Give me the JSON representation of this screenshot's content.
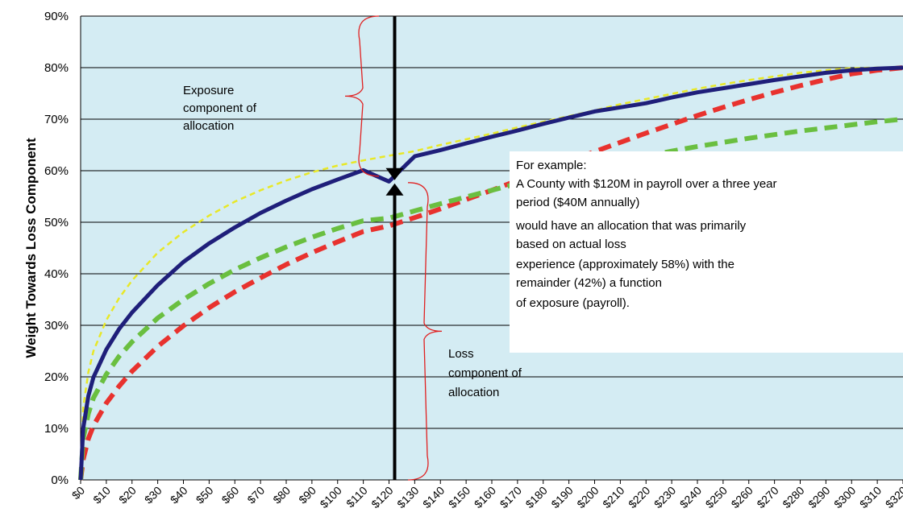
{
  "chart_data": {
    "type": "line",
    "title": "",
    "xlabel": "",
    "ylabel": "Weight Towards Loss Component",
    "xlim": [
      0,
      320
    ],
    "ylim": [
      0,
      90
    ],
    "x_ticks": [
      "$0",
      "$10",
      "$20",
      "$30",
      "$40",
      "$50",
      "$60",
      "$70",
      "$80",
      "$90",
      "$100",
      "$110",
      "$120",
      "$130",
      "$140",
      "$150",
      "$160",
      "$170",
      "$180",
      "$190",
      "$200",
      "$210",
      "$220",
      "$230",
      "$240",
      "$250",
      "$260",
      "$270",
      "$280",
      "$290",
      "$300",
      "$310",
      "$320"
    ],
    "y_ticks": [
      "0%",
      "10%",
      "20%",
      "30%",
      "40%",
      "50%",
      "60%",
      "70%",
      "80%",
      "90%"
    ],
    "grid": true,
    "plot_background": "#d4ecf3",
    "x": [
      0,
      1,
      3,
      5,
      10,
      15,
      20,
      30,
      40,
      50,
      60,
      70,
      80,
      90,
      100,
      110,
      120,
      130,
      140,
      150,
      160,
      170,
      180,
      190,
      200,
      210,
      220,
      230,
      240,
      250,
      260,
      270,
      280,
      290,
      300,
      310,
      320
    ],
    "series": [
      {
        "color": "#1f1f7a",
        "style": "solid",
        "values": [
          0,
          10,
          16.3,
          19.9,
          25.3,
          29.3,
          32.5,
          37.8,
          42.3,
          45.9,
          49.0,
          51.8,
          54.2,
          56.4,
          58.3,
          60.1,
          57.9,
          62.8,
          64.0,
          65.3,
          66.6,
          67.8,
          69.1,
          70.3,
          71.5,
          72.3,
          73.1,
          74.2,
          75.2,
          76.0,
          76.8,
          77.6,
          78.3,
          79.0,
          79.5,
          79.8,
          80
        ]
      },
      {
        "color": "#e8e827",
        "style": "dashed",
        "values": [
          0,
          14,
          20.9,
          25.0,
          31.0,
          35.3,
          38.7,
          44.1,
          48.1,
          51.3,
          54.0,
          56.2,
          58.1,
          59.7,
          61.0,
          62.0,
          62.9,
          63.8,
          65.0,
          66.1,
          67.2,
          68.4,
          69.5,
          70.6,
          71.7,
          72.9,
          73.9,
          74.9,
          75.9,
          76.8,
          77.6,
          78.3,
          79.0,
          79.5,
          79.9,
          80.0,
          80
        ]
      },
      {
        "color": "#6abf40",
        "style": "dashed",
        "values": [
          0,
          8,
          12.9,
          15.9,
          20.5,
          24.0,
          26.8,
          31.4,
          35.0,
          38.1,
          40.8,
          43.1,
          45.2,
          47.1,
          48.8,
          50.3,
          50.8,
          52.2,
          53.6,
          54.9,
          56.2,
          57.5,
          58.7,
          59.8,
          60.8,
          61.8,
          62.8,
          63.8,
          64.7,
          65.5,
          66.3,
          67.0,
          67.7,
          68.3,
          68.9,
          69.5,
          70
        ]
      },
      {
        "color": "#e8322e",
        "style": "dashed",
        "values": [
          0,
          4,
          8.0,
          10.5,
          14.9,
          18.2,
          21.1,
          25.9,
          29.9,
          33.4,
          36.5,
          39.2,
          41.8,
          44.1,
          46.2,
          48.2,
          49.3,
          50.9,
          52.6,
          54.4,
          56.2,
          58.1,
          60.0,
          61.8,
          63.7,
          65.5,
          67.3,
          69.0,
          70.7,
          72.3,
          73.8,
          75.2,
          76.5,
          77.7,
          78.8,
          79.5,
          80
        ]
      }
    ],
    "annotations": {
      "exposure": [
        "Exposure",
        "component of",
        "allocation"
      ],
      "loss": [
        "Loss",
        "component of",
        "allocation"
      ],
      "example": [
        "For example:",
        "A County with $120M in  payroll over a three year",
        "period ($40M annually)",
        "would have an allocation that was primarily",
        "based on actual loss",
        "experience (approximately 58%) with the",
        "remainder (42%) a function",
        "of exposure (payroll)."
      ],
      "marker_x": 120,
      "marker_y": 58
    }
  }
}
